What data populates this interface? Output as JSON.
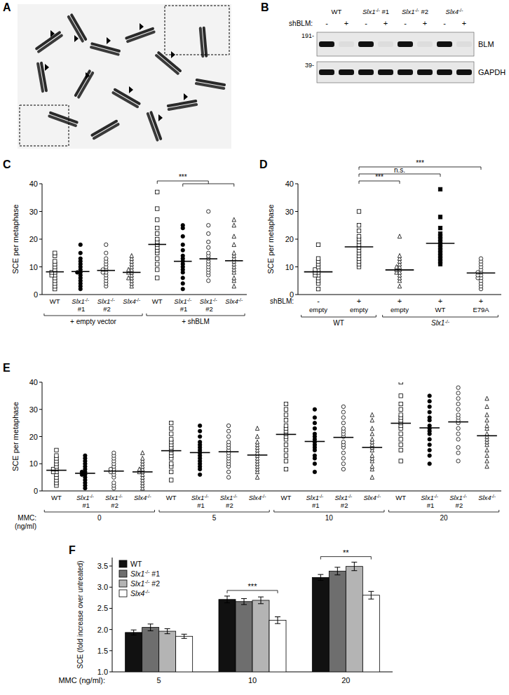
{
  "chart_data": [
    {
      "type": "image",
      "panel": "A"
    },
    {
      "type": "blot",
      "panel": "B",
      "row_label": "shBLM:",
      "categories": [
        "WT",
        "Slx1-/- #1",
        "Slx1-/- #2",
        "Slx4-/-"
      ],
      "lanes": [
        "-",
        "+",
        "-",
        "+",
        "-",
        "+",
        "-",
        "+"
      ],
      "markers": [
        {
          "value": 191,
          "label": "191-"
        },
        {
          "value": 39,
          "label": "39-"
        }
      ],
      "bands": [
        {
          "name": "BLM",
          "values": [
            1,
            0.05,
            1,
            0.05,
            1,
            0.05,
            1,
            0.05
          ]
        },
        {
          "name": "GAPDH",
          "values": [
            1,
            1,
            1,
            1,
            1,
            1,
            1,
            1
          ]
        }
      ]
    },
    {
      "type": "scatter",
      "panel": "C",
      "ylabel": "SCE per metaphase",
      "ylim": [
        0,
        40
      ],
      "yticks": [
        0,
        10,
        20,
        30,
        40
      ],
      "series": [
        {
          "name": "WT",
          "marker": "square-open",
          "mean": 8.2,
          "values": [
            2,
            3,
            4,
            5,
            6,
            7,
            7,
            8,
            8,
            9,
            10,
            11,
            12,
            14,
            15
          ]
        },
        {
          "name": "Slx1-/- #1",
          "marker": "circle-filled",
          "mean": 8.3,
          "values": [
            2,
            3,
            4,
            5,
            6,
            7,
            8,
            8,
            9,
            10,
            11,
            12,
            13,
            15,
            18
          ]
        },
        {
          "name": "Slx1-/- #2",
          "marker": "circle-open",
          "mean": 8.7,
          "values": [
            3,
            4,
            5,
            6,
            7,
            8,
            8,
            9,
            9,
            10,
            11,
            12,
            13,
            15,
            18
          ]
        },
        {
          "name": "Slx4-/-",
          "marker": "triangle-open",
          "mean": 8.0,
          "values": [
            3,
            4,
            5,
            6,
            6,
            7,
            8,
            8,
            9,
            9,
            10,
            11,
            12,
            13,
            14
          ]
        },
        {
          "name": "WT",
          "marker": "square-open",
          "mean": 18.1,
          "values": [
            6,
            9,
            11,
            13,
            15,
            16,
            17,
            18,
            19,
            20,
            22,
            24,
            27,
            31,
            37
          ]
        },
        {
          "name": "Slx1-/- #1",
          "marker": "circle-filled",
          "mean": 12.0,
          "values": [
            2,
            4,
            6,
            8,
            9,
            10,
            11,
            12,
            13,
            14,
            16,
            18,
            21,
            24,
            25
          ]
        },
        {
          "name": "Slx1-/- #2",
          "marker": "circle-open",
          "mean": 12.9,
          "values": [
            5,
            7,
            8,
            9,
            10,
            11,
            12,
            13,
            14,
            15,
            17,
            19,
            22,
            25,
            30
          ]
        },
        {
          "name": "Slx4-/-",
          "marker": "triangle-open",
          "mean": 12.2,
          "values": [
            3,
            5,
            6,
            8,
            9,
            10,
            11,
            12,
            13,
            14,
            15,
            18,
            21,
            25,
            27
          ]
        }
      ],
      "groups": [
        {
          "label": "+ empty vector",
          "size": 4
        },
        {
          "label": "+ shBLM",
          "size": 4
        }
      ],
      "significance": [
        {
          "label": "***",
          "from": 4,
          "to": [
            5,
            7
          ]
        }
      ]
    },
    {
      "type": "scatter",
      "panel": "D",
      "ylabel": "SCE per metaphase",
      "ylim": [
        0,
        40
      ],
      "yticks": [
        0,
        10,
        20,
        30,
        40
      ],
      "x_rows": [
        {
          "label": "shBLM:",
          "values": [
            "-",
            "+",
            "+",
            "+",
            "+"
          ]
        }
      ],
      "series": [
        {
          "name": "empty",
          "marker": "square-open",
          "mean": 8.2,
          "values": [
            2,
            4,
            5,
            6,
            7,
            7,
            8,
            8,
            9,
            9,
            10,
            11,
            12,
            13,
            18
          ]
        },
        {
          "name": "empty",
          "marker": "square-open",
          "mean": 17.2,
          "values": [
            10,
            11,
            12,
            13,
            14,
            15,
            16,
            17,
            18,
            19,
            20,
            21,
            23,
            25,
            30
          ]
        },
        {
          "name": "empty",
          "marker": "triangle-open",
          "mean": 8.9,
          "values": [
            3,
            5,
            6,
            7,
            8,
            8,
            9,
            9,
            10,
            10,
            11,
            12,
            13,
            14,
            21
          ]
        },
        {
          "name": "WT",
          "marker": "square-filled",
          "mean": 18.5,
          "values": [
            11,
            12,
            13,
            14,
            15,
            16,
            17,
            18,
            19,
            20,
            21,
            22,
            24,
            28,
            38
          ]
        },
        {
          "name": "E79A",
          "marker": "circle-open",
          "mean": 7.8,
          "values": [
            2,
            3,
            4,
            5,
            6,
            6,
            7,
            7,
            8,
            8,
            9,
            10,
            11,
            12,
            13
          ]
        }
      ],
      "groups": [
        {
          "label": "WT",
          "size": 2
        },
        {
          "label": "Slx1-/-",
          "size": 3
        }
      ],
      "significance": [
        {
          "label": "***",
          "from": 1,
          "to": [
            2,
            2
          ]
        },
        {
          "label": "n.s.",
          "from": 1,
          "to": [
            3,
            3
          ]
        },
        {
          "label": "***",
          "from": 1,
          "to": [
            4,
            4
          ]
        }
      ]
    },
    {
      "type": "scatter",
      "panel": "E",
      "ylabel": "SCE per metaphase",
      "ylim": [
        0,
        40
      ],
      "yticks": [
        0,
        10,
        20,
        30,
        40
      ],
      "series": [
        {
          "name": "WT",
          "marker": "square-open",
          "mean": 7.6,
          "values": [
            2,
            3,
            4,
            5,
            6,
            7,
            7,
            8,
            8,
            9,
            10,
            11,
            12,
            13,
            15
          ]
        },
        {
          "name": "Slx1-/- #1",
          "marker": "circle-filled",
          "mean": 6.5,
          "values": [
            1,
            2,
            3,
            4,
            5,
            6,
            6,
            7,
            7,
            8,
            9,
            10,
            11,
            12,
            13
          ]
        },
        {
          "name": "Slx1-/- #2",
          "marker": "circle-open",
          "mean": 7.3,
          "values": [
            1,
            2,
            3,
            5,
            6,
            7,
            7,
            8,
            8,
            9,
            10,
            11,
            12,
            13,
            14
          ]
        },
        {
          "name": "Slx4-/-",
          "marker": "triangle-open",
          "mean": 7.0,
          "values": [
            1,
            2,
            3,
            4,
            5,
            6,
            7,
            7,
            8,
            8,
            9,
            10,
            11,
            12,
            14
          ]
        },
        {
          "name": "WT",
          "marker": "square-open",
          "mean": 14.8,
          "values": [
            4,
            7,
            9,
            10,
            12,
            13,
            14,
            15,
            16,
            17,
            18,
            19,
            21,
            23,
            25
          ]
        },
        {
          "name": "Slx1-/- #1",
          "marker": "circle-filled",
          "mean": 14.1,
          "values": [
            6,
            8,
            9,
            10,
            11,
            12,
            13,
            14,
            15,
            16,
            17,
            18,
            20,
            22,
            24
          ]
        },
        {
          "name": "Slx1-/- #2",
          "marker": "circle-open",
          "mean": 14.4,
          "values": [
            5,
            7,
            9,
            10,
            11,
            12,
            13,
            14,
            15,
            16,
            17,
            18,
            20,
            22,
            24
          ]
        },
        {
          "name": "Slx4-/-",
          "marker": "triangle-open",
          "mean": 13.2,
          "values": [
            5,
            7,
            8,
            9,
            10,
            11,
            12,
            13,
            14,
            15,
            16,
            17,
            18,
            20,
            23
          ]
        },
        {
          "name": "WT",
          "marker": "square-open",
          "mean": 20.8,
          "values": [
            8,
            11,
            13,
            15,
            17,
            19,
            20,
            21,
            22,
            23,
            24,
            26,
            28,
            30,
            32
          ]
        },
        {
          "name": "Slx1-/- #1",
          "marker": "circle-filled",
          "mean": 18.2,
          "values": [
            7,
            10,
            12,
            13,
            15,
            16,
            17,
            18,
            19,
            20,
            21,
            23,
            25,
            27,
            30
          ]
        },
        {
          "name": "Slx1-/- #2",
          "marker": "circle-open",
          "mean": 19.7,
          "values": [
            8,
            10,
            12,
            14,
            16,
            17,
            18,
            20,
            21,
            22,
            23,
            25,
            27,
            29,
            31
          ]
        },
        {
          "name": "Slx4-/-",
          "marker": "triangle-open",
          "mean": 16.0,
          "values": [
            5,
            8,
            9,
            11,
            12,
            13,
            15,
            16,
            17,
            18,
            19,
            21,
            23,
            26,
            28
          ]
        },
        {
          "name": "WT",
          "marker": "square-open",
          "mean": 24.9,
          "values": [
            11,
            15,
            17,
            19,
            21,
            23,
            24,
            25,
            26,
            27,
            28,
            30,
            32,
            35,
            40
          ]
        },
        {
          "name": "Slx1-/- #1",
          "marker": "circle-filled",
          "mean": 23.2,
          "values": [
            10,
            13,
            15,
            17,
            19,
            21,
            22,
            23,
            24,
            26,
            27,
            29,
            31,
            33,
            35
          ]
        },
        {
          "name": "Slx1-/- #2",
          "marker": "circle-open",
          "mean": 25.4,
          "values": [
            11,
            14,
            16,
            19,
            21,
            23,
            25,
            26,
            27,
            28,
            30,
            32,
            34,
            36,
            38
          ]
        },
        {
          "name": "Slx4-/-",
          "marker": "triangle-open",
          "mean": 20.3,
          "values": [
            9,
            11,
            13,
            15,
            17,
            18,
            19,
            20,
            21,
            23,
            24,
            26,
            28,
            31,
            34
          ]
        }
      ],
      "groups": [
        {
          "label": "0",
          "size": 4
        },
        {
          "label": "5",
          "size": 4
        },
        {
          "label": "10",
          "size": 4
        },
        {
          "label": "20",
          "size": 4
        }
      ],
      "group_title": "MMC:",
      "group_unit": "(ng/ml)"
    },
    {
      "type": "bar",
      "panel": "F",
      "ylabel": "SCE (fold increase over untreated)",
      "xlabel": "MMC (ng/ml):",
      "categories": [
        "5",
        "10",
        "20"
      ],
      "ylim": [
        1,
        3.7
      ],
      "yticks": [
        {
          "value": 1,
          "label": "1.0"
        },
        1.5,
        {
          "value": 2,
          "label": "2.0"
        },
        2.5,
        {
          "value": 3,
          "label": "3.0"
        },
        3.5
      ],
      "legend": "top-left",
      "series": [
        {
          "name": "WT",
          "color": "#111111",
          "values": [
            1.93,
            2.71,
            3.23
          ],
          "errors": [
            0.06,
            0.08,
            0.07
          ]
        },
        {
          "name": "Slx1-/- #1",
          "color": "#6e6e6e",
          "values": [
            2.05,
            2.66,
            3.38
          ],
          "errors": [
            0.08,
            0.07,
            0.09
          ]
        },
        {
          "name": "Slx1-/- #2",
          "color": "#b4b4b4",
          "values": [
            1.96,
            2.69,
            3.49
          ],
          "errors": [
            0.06,
            0.08,
            0.1
          ]
        },
        {
          "name": "Slx4-/-",
          "color": "#ffffff",
          "values": [
            1.84,
            2.22,
            2.81
          ],
          "errors": [
            0.05,
            0.08,
            0.09
          ]
        }
      ],
      "significance": [
        {
          "label": "***",
          "category": 1
        },
        {
          "label": "**",
          "category": 2
        }
      ]
    }
  ]
}
